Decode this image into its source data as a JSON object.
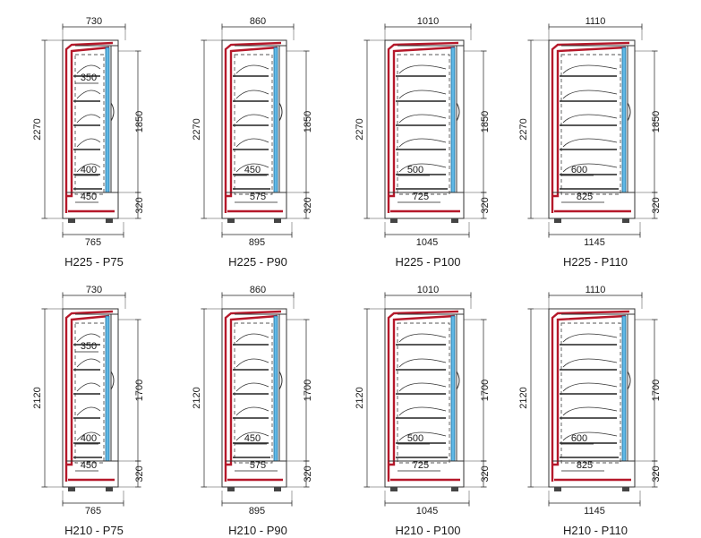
{
  "rows": [
    {
      "height_total": "2120",
      "panels": []
    }
  ],
  "panels": [
    {
      "id": "h225-p75",
      "caption": "H225 - P75",
      "width_top": "730",
      "depth_bottom": "765",
      "height_total": "2270",
      "height_open": "1850",
      "base_height": "320",
      "shelf_labels": [
        "350",
        "400",
        "450"
      ],
      "row": 0,
      "col": 0
    },
    {
      "id": "h225-p90",
      "caption": "H225 - P90",
      "width_top": "860",
      "depth_bottom": "895",
      "height_total": "2270",
      "height_open": "1850",
      "base_height": "320",
      "shelf_labels": [
        "450",
        "575"
      ],
      "row": 0,
      "col": 1
    },
    {
      "id": "h225-p100",
      "caption": "H225 - P100",
      "width_top": "1010",
      "depth_bottom": "1045",
      "height_total": "2270",
      "height_open": "1850",
      "base_height": "320",
      "shelf_labels": [
        "500",
        "725"
      ],
      "row": 0,
      "col": 2
    },
    {
      "id": "h225-p110",
      "caption": "H225 - P110",
      "width_top": "1110",
      "depth_bottom": "1145",
      "height_total": "2270",
      "height_open": "1850",
      "base_height": "320",
      "shelf_labels": [
        "600",
        "825"
      ],
      "row": 0,
      "col": 3
    },
    {
      "id": "h210-p75",
      "caption": "H210 - P75",
      "width_top": "730",
      "depth_bottom": "765",
      "height_total": "2120",
      "height_open": "1700",
      "base_height": "320",
      "shelf_labels": [
        "350",
        "400",
        "450"
      ],
      "row": 1,
      "col": 0
    },
    {
      "id": "h210-p90",
      "caption": "H210 - P90",
      "width_top": "860",
      "depth_bottom": "895",
      "height_total": "2120",
      "height_open": "1700",
      "base_height": "320",
      "shelf_labels": [
        "450",
        "575"
      ],
      "row": 1,
      "col": 1
    },
    {
      "id": "h210-p100",
      "caption": "H210 - P100",
      "width_top": "1010",
      "depth_bottom": "1045",
      "height_total": "2120",
      "height_open": "1700",
      "base_height": "320",
      "shelf_labels": [
        "500",
        "725"
      ],
      "row": 1,
      "col": 2
    },
    {
      "id": "h210-p110",
      "caption": "H210 - P110",
      "width_top": "1110",
      "depth_bottom": "1145",
      "height_total": "2120",
      "height_open": "1700",
      "base_height": "320",
      "shelf_labels": [
        "600",
        "825"
      ],
      "row": 1,
      "col": 3
    }
  ],
  "colors": {
    "frame": "#b5182a",
    "glass": "#5fb8e6",
    "line": "#222222"
  }
}
